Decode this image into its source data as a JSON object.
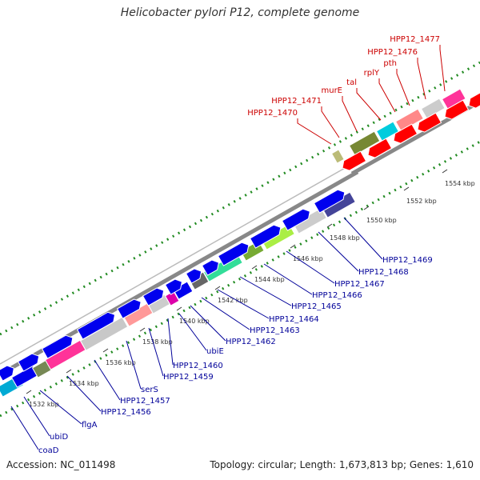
{
  "title": "Helicobacter pylori P12, complete genome",
  "footer": {
    "accession": "Accession: NC_011498",
    "summary": "Topology: circular; Length: 1,673,813 bp; Genes: 1,610"
  },
  "colors": {
    "forward_label": "#000099",
    "reverse_label": "#cc0000",
    "scale_dots": "#228b22",
    "backbone": "#888888"
  },
  "scale_ticks": [
    "1532 kbp",
    "1534 kbp",
    "1536 kbp",
    "1538 kbp",
    "1540 kbp",
    "1542 kbp",
    "1544 kbp",
    "1546 kbp",
    "1548 kbp",
    "1550 kbp",
    "1552 kbp",
    "1554 kbp"
  ],
  "forward_labels": [
    "coaD",
    "ubiD",
    "flgA",
    "HPP12_1456",
    "HPP12_1457",
    "serS",
    "HPP12_1459",
    "HPP12_1460",
    "ubiE",
    "HPP12_1462",
    "HPP12_1463",
    "HPP12_1464",
    "HPP12_1465",
    "HPP12_1466",
    "HPP12_1467",
    "HPP12_1468",
    "HPP12_1469"
  ],
  "reverse_labels": [
    "HPP12_1470",
    "HPP12_1471",
    "murE",
    "tal",
    "rplY",
    "pth",
    "HPP12_1476",
    "HPP12_1477"
  ]
}
